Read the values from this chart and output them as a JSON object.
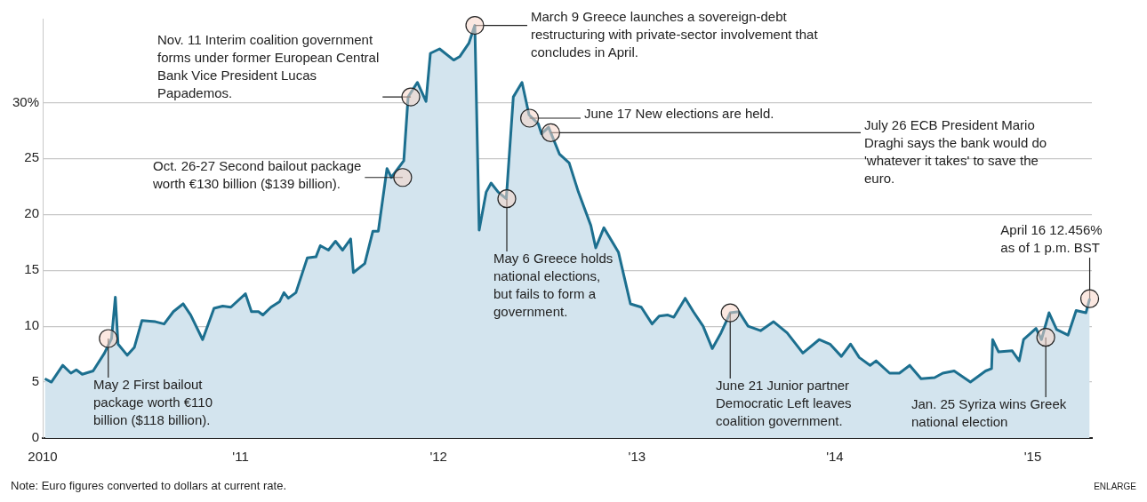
{
  "chart_data": {
    "type": "area",
    "x": [
      "2010-01-05",
      "2010-01-17",
      "2010-02-07",
      "2010-02-22",
      "2010-03-04",
      "2010-03-15",
      "2010-04-04",
      "2010-04-25",
      "2010-05-08",
      "2010-05-15",
      "2010-05-20",
      "2010-06-06",
      "2010-06-19",
      "2010-07-03",
      "2010-07-28",
      "2010-08-13",
      "2010-08-30",
      "2010-09-17",
      "2010-10-01",
      "2010-10-23",
      "2010-11-13",
      "2010-11-29",
      "2010-12-14",
      "2011-01-10",
      "2011-01-21",
      "2011-02-03",
      "2011-02-11",
      "2011-02-26",
      "2011-03-14",
      "2011-03-22",
      "2011-03-30",
      "2011-04-13",
      "2011-05-04",
      "2011-05-20",
      "2011-05-28",
      "2011-06-12",
      "2011-06-25",
      "2011-07-08",
      "2011-07-23",
      "2011-07-28",
      "2011-08-18",
      "2011-09-02",
      "2011-09-12",
      "2011-09-28",
      "2011-10-06",
      "2011-10-29",
      "2011-11-06",
      "2011-11-23",
      "2011-12-09",
      "2011-12-17",
      "2012-01-03",
      "2012-01-29",
      "2012-02-09",
      "2012-02-26",
      "2012-03-08",
      "2012-03-16",
      "2012-03-29",
      "2012-04-07",
      "2012-04-20",
      "2012-05-05",
      "2012-05-18",
      "2012-06-03",
      "2012-06-16",
      "2012-07-03",
      "2012-07-09",
      "2012-07-22",
      "2012-08-11",
      "2012-08-29",
      "2012-09-15",
      "2012-10-08",
      "2012-10-17",
      "2012-11-01",
      "2012-11-28",
      "2012-12-20",
      "2013-01-09",
      "2013-01-29",
      "2013-02-11",
      "2013-02-27",
      "2013-03-10",
      "2013-03-31",
      "2013-04-15",
      "2013-05-03",
      "2013-05-20",
      "2013-06-05",
      "2013-06-22",
      "2013-07-08",
      "2013-07-25",
      "2013-08-17",
      "2013-09-10",
      "2013-10-05",
      "2013-11-03",
      "2013-12-03",
      "2013-12-23",
      "2014-01-13",
      "2014-01-30",
      "2014-02-15",
      "2014-03-07",
      "2014-03-18",
      "2014-04-12",
      "2014-04-30",
      "2014-05-19",
      "2014-06-09",
      "2014-07-04",
      "2014-07-19",
      "2014-08-09",
      "2014-09-08",
      "2014-10-06",
      "2014-10-17",
      "2014-10-19",
      "2014-10-30",
      "2014-11-24",
      "2014-12-07",
      "2014-12-15",
      "2015-01-07",
      "2015-01-17",
      "2015-01-31",
      "2015-02-14",
      "2015-03-07",
      "2015-03-22",
      "2015-04-09",
      "2015-04-16"
    ],
    "series": [
      {
        "color": "#1c6f8f",
        "values": [
          5.3,
          5.0,
          6.5,
          5.8,
          6.1,
          5.7,
          6.0,
          7.6,
          8.9,
          12.6,
          8.4,
          7.4,
          8.1,
          10.5,
          10.4,
          10.2,
          11.3,
          12.0,
          11.0,
          8.8,
          11.6,
          11.8,
          11.7,
          12.9,
          11.3,
          11.3,
          11.0,
          11.7,
          12.2,
          13.0,
          12.5,
          13.0,
          16.1,
          16.2,
          17.2,
          16.8,
          17.6,
          16.8,
          17.8,
          14.8,
          15.6,
          18.5,
          18.5,
          24.1,
          23.3,
          24.8,
          30.5,
          31.8,
          30.1,
          34.4,
          34.8,
          33.8,
          34.1,
          35.3,
          36.9,
          18.6,
          22.0,
          22.8,
          22.0,
          21.4,
          30.5,
          31.8,
          28.9,
          28.1,
          27.2,
          27.8,
          25.4,
          24.6,
          22.0,
          19.0,
          17.0,
          18.8,
          16.6,
          12.0,
          11.7,
          10.2,
          10.9,
          11.0,
          10.8,
          12.5,
          11.3,
          10.0,
          8.0,
          9.4,
          11.2,
          11.3,
          10.0,
          9.6,
          10.4,
          9.4,
          7.6,
          8.8,
          8.4,
          7.3,
          8.4,
          7.2,
          6.5,
          6.9,
          5.8,
          5.8,
          6.5,
          5.3,
          5.4,
          5.8,
          6.0,
          5.0,
          6.0,
          6.2,
          8.8,
          7.7,
          7.8,
          6.9,
          8.8,
          9.8,
          8.8,
          11.2,
          9.7,
          9.2,
          11.4,
          11.2,
          12.456
        ]
      }
    ],
    "xlim": [
      "2010-01-01",
      "2015-04-20"
    ],
    "xticks": [
      {
        "value": "2010-01-01",
        "label": "2010"
      },
      {
        "value": "2011-01-01",
        "label": "'11"
      },
      {
        "value": "2012-01-01",
        "label": "'12"
      },
      {
        "value": "2013-01-01",
        "label": "'13"
      },
      {
        "value": "2014-01-01",
        "label": "'14"
      },
      {
        "value": "2015-01-01",
        "label": "'15"
      }
    ],
    "ylim": [
      0,
      37.5
    ],
    "yticks": [
      0,
      5,
      10,
      15,
      20,
      25,
      {
        "value": 30,
        "label": "30%"
      }
    ],
    "grid": "y",
    "legend": false,
    "annotations": [
      {
        "text": "May 2 First bailout package worth €110 billion ($118 billion).",
        "x": "2010-05-02",
        "y": 8.9
      },
      {
        "text": "Oct. 26-27 Second bailout package worth €130 billion ($139 billion).",
        "x": "2011-10-27",
        "y": 23.3
      },
      {
        "text": "Nov. 11 Interim coalition government forms under former European Central Bank Vice President Lucas Papademos.",
        "x": "2011-11-11",
        "y": 30.5
      },
      {
        "text": "March 9 Greece launches a sovereign-debt restructuring with private-sector involvement that concludes in April.",
        "x": "2012-03-08",
        "y": 36.9
      },
      {
        "text": "May 6 Greece holds national elections, but fails to form a government.",
        "x": "2012-05-06",
        "y": 21.4
      },
      {
        "text": "June 17 New elections are held.",
        "x": "2012-06-17",
        "y": 28.6
      },
      {
        "text": "July 26 ECB President Mario Draghi says the bank would do 'whatever it takes' to save the euro.",
        "x": "2012-07-26",
        "y": 27.3
      },
      {
        "text": "June 21 Junior partner Democratic Left leaves coalition government.",
        "x": "2013-06-22",
        "y": 11.2
      },
      {
        "text": "Jan. 25 Syriza wins Greek national election",
        "x": "2015-01-25",
        "y": 9.0
      },
      {
        "text": "April 16 12.456% as of 1 p.m. BST",
        "x": "2015-04-16",
        "y": 12.456
      },
      "Note: Euro figures converted to dollars at current rate.",
      "ENLARGE"
    ]
  }
}
